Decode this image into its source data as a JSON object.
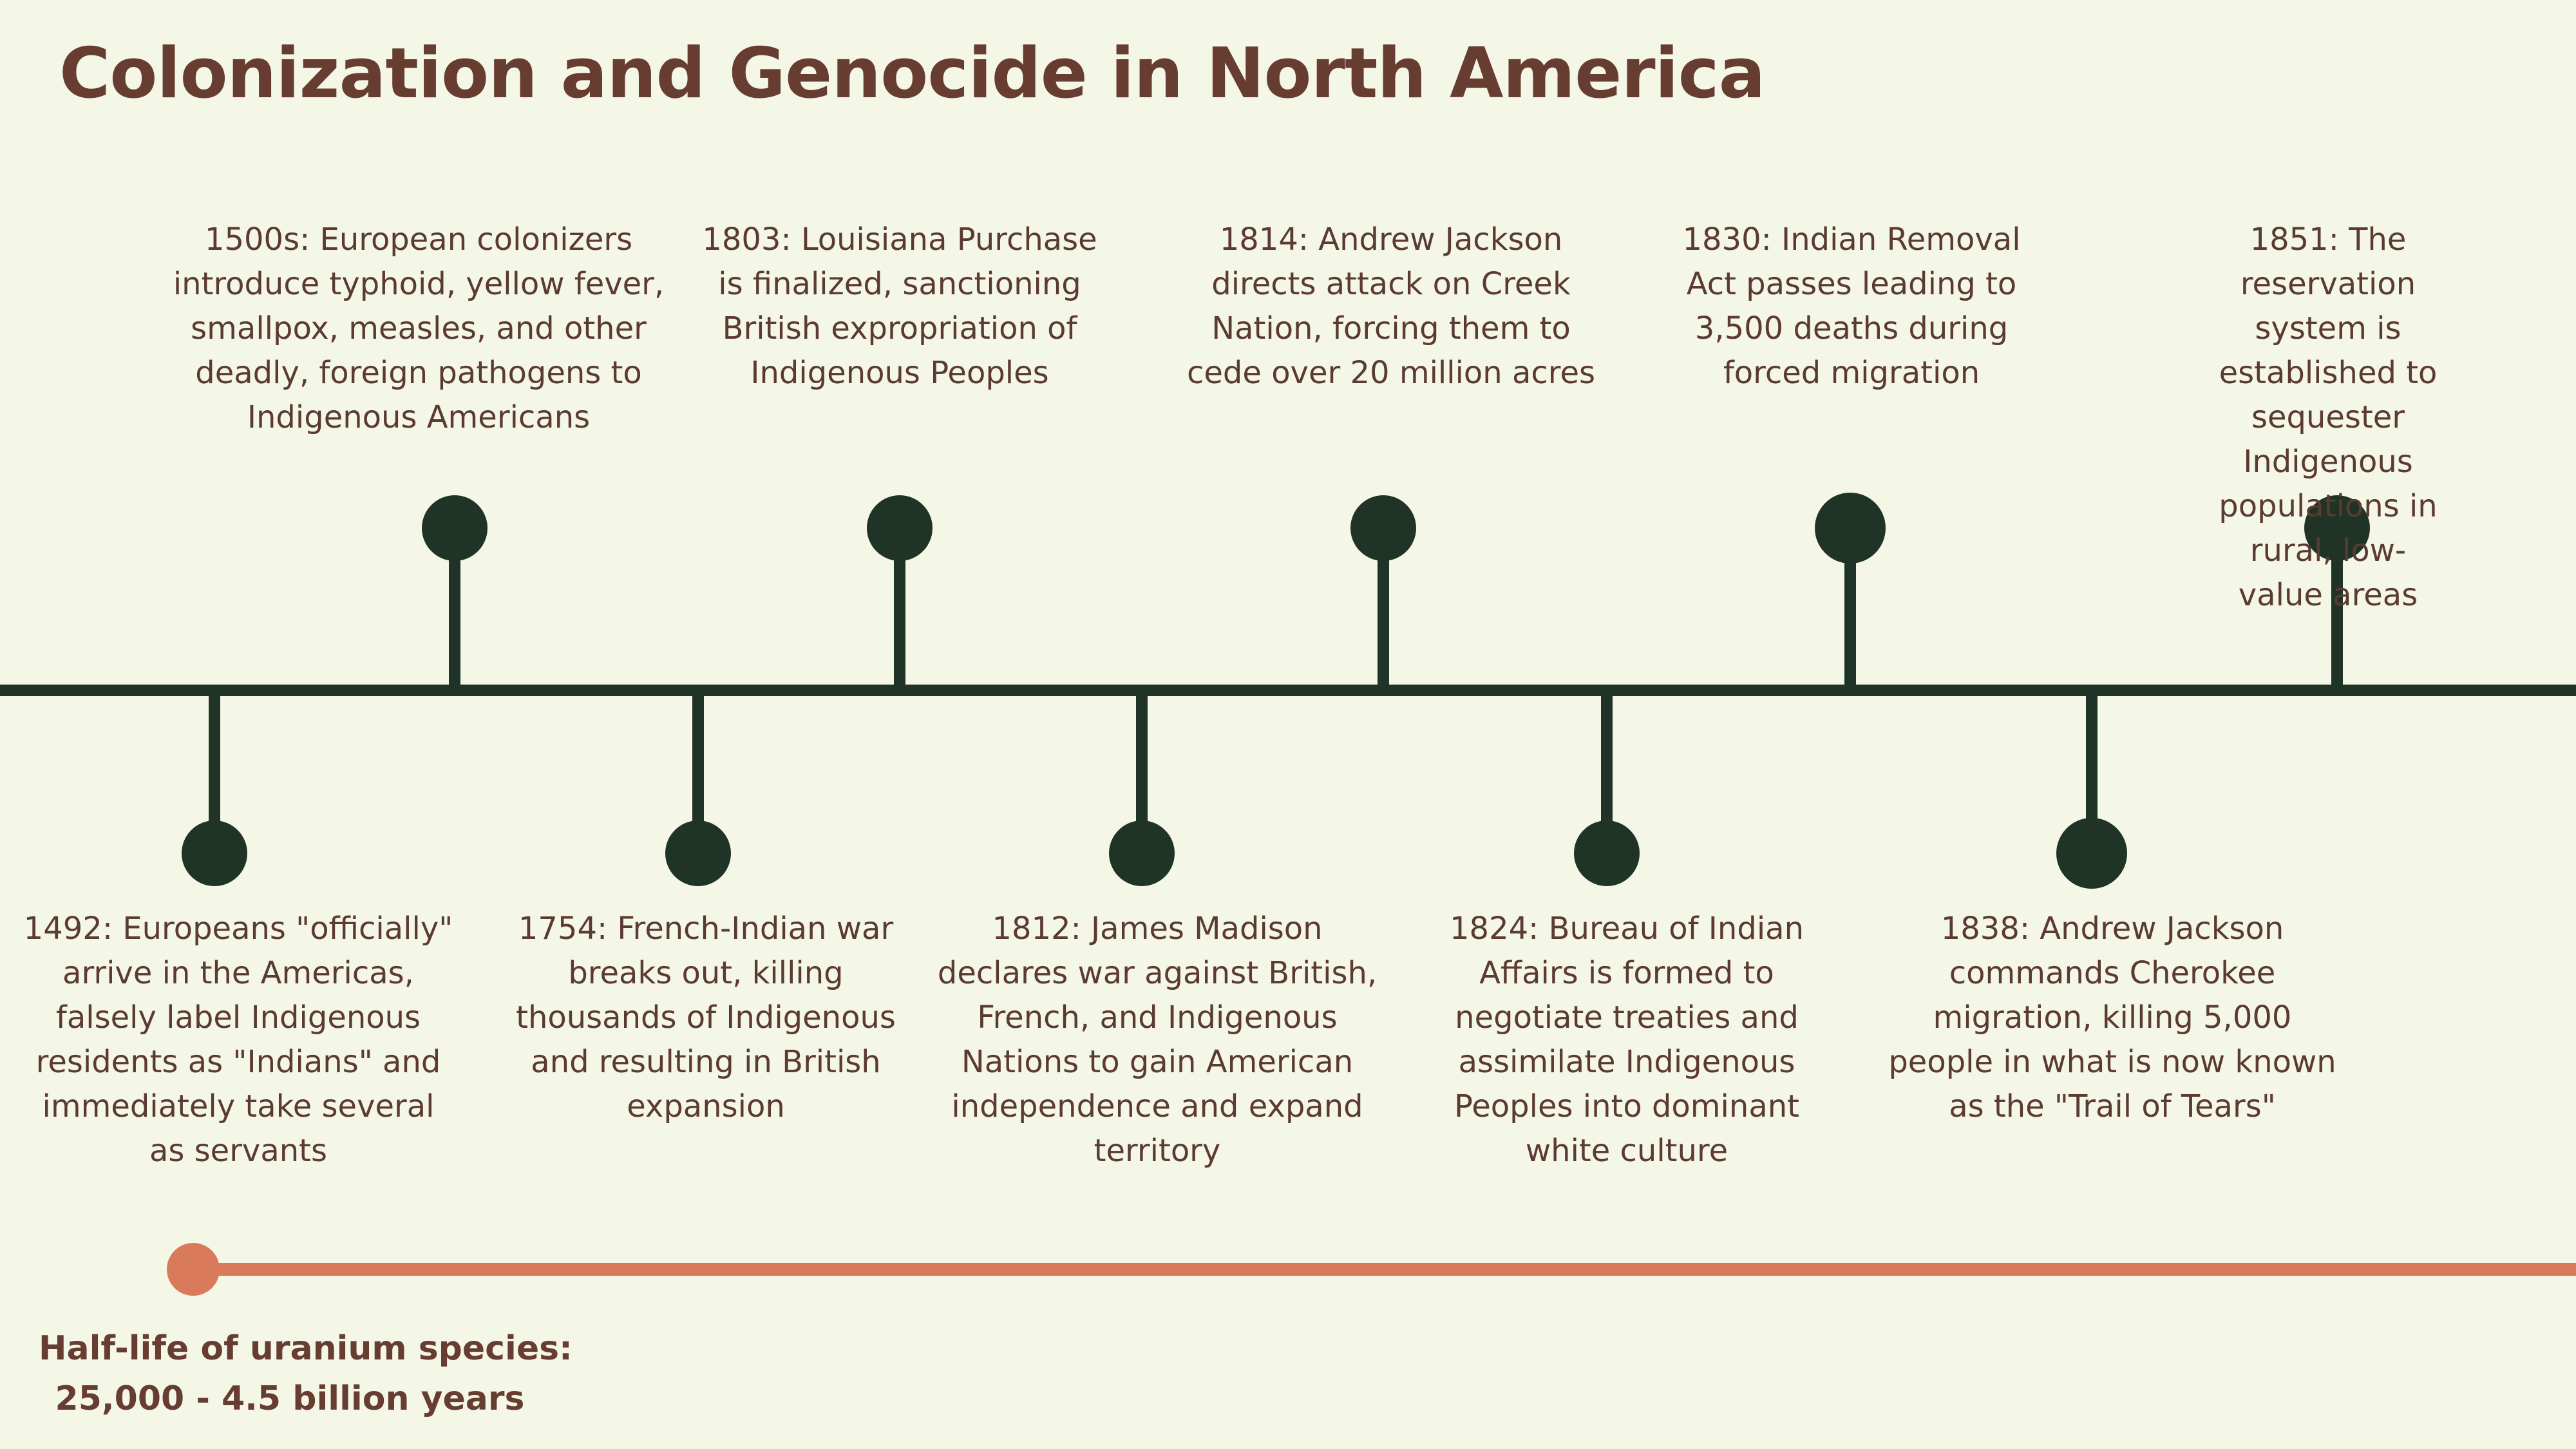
{
  "title": "Colonization and Genocide in North America",
  "colors": {
    "background": "#f5f7e6",
    "title": "#673d32",
    "text": "#5a3a31",
    "timeline": "#1f3427",
    "uranium_line": "#d97a5b"
  },
  "events_top": [
    {
      "year": "1500s",
      "text": "1500s: European colonizers\nintroduce typhoid, yellow fever,\nsmallpox, measles, and other\ndeadly, foreign pathogens to\nIndigenous Americans"
    },
    {
      "year": "1803",
      "text": "1803: Louisiana Purchase\nis finalized, sanctioning\nBritish expropriation of\nIndigenous Peoples"
    },
    {
      "year": "1814",
      "text": "1814: Andrew Jackson\ndirects attack on Creek\nNation, forcing them to\ncede over 20 million acres"
    },
    {
      "year": "1830",
      "text": "1830: Indian Removal\nAct passes leading to\n3,500 deaths during\nforced migration"
    },
    {
      "year": "1851",
      "text": "1851: The reservation\nsystem is established to\nsequester Indigenous\npopulations in rural, low-\nvalue areas"
    }
  ],
  "events_bottom": [
    {
      "year": "1492",
      "text": "1492: Europeans \"officially\"\narrive in the Americas,\nfalsely label Indigenous\nresidents as \"Indians\" and\nimmediately take several\nas servants"
    },
    {
      "year": "1754",
      "text": "1754: French-Indian war\nbreaks out, killing\nthousands of Indigenous\nand resulting in British\nexpansion"
    },
    {
      "year": "1812",
      "text": "1812: James Madison\ndeclares war against British,\nFrench, and Indigenous\nNations to gain American\nindependence and expand\nterritory"
    },
    {
      "year": "1824",
      "text": "1824: Bureau of Indian\nAffairs is formed to\nnegotiate treaties and\nassimilate Indigenous\nPeoples into dominant\nwhite culture"
    },
    {
      "year": "1838",
      "text": "1838: Andrew Jackson\ncommands Cherokee\nmigration, killing 5,000\npeople in what is now known\nas the \"Trail of Tears\""
    }
  ],
  "uranium": {
    "label": "Half-life of uranium species:",
    "value": "25,000 - 4.5 billion years"
  }
}
